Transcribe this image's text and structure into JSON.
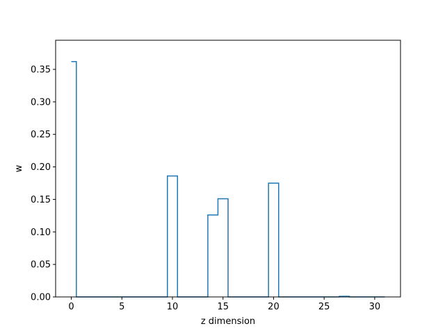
{
  "chart_data": {
    "type": "line",
    "drawstyle": "steps-mid",
    "xlabel": "z dimension",
    "ylabel": "w",
    "xlim": [
      -1.55,
      32.55
    ],
    "ylim": [
      0,
      0.3948
    ],
    "xticks": [
      0,
      5,
      10,
      15,
      20,
      25,
      30
    ],
    "xtick_labels": [
      "0",
      "5",
      "10",
      "15",
      "20",
      "25",
      "30"
    ],
    "yticks": [
      0,
      0.05,
      0.1,
      0.15,
      0.2,
      0.25,
      0.3,
      0.35
    ],
    "ytick_labels": [
      "0.00",
      "0.05",
      "0.10",
      "0.15",
      "0.20",
      "0.25",
      "0.30",
      "0.35"
    ],
    "grid": false,
    "series": [
      {
        "color": "#1f77b4",
        "x": [
          0,
          1,
          2,
          3,
          4,
          5,
          6,
          7,
          8,
          9,
          10,
          11,
          12,
          13,
          14,
          15,
          16,
          17,
          18,
          19,
          20,
          21,
          22,
          23,
          24,
          25,
          26,
          27,
          28,
          29,
          30,
          31
        ],
        "y": [
          0.362,
          0,
          0,
          0,
          0,
          0,
          0,
          0,
          0,
          0,
          0.186,
          0,
          0,
          0,
          0.126,
          0.151,
          0,
          0,
          0,
          0,
          0.175,
          0,
          0,
          0,
          0,
          0,
          0,
          0.001,
          0,
          0,
          0,
          0
        ]
      }
    ]
  }
}
